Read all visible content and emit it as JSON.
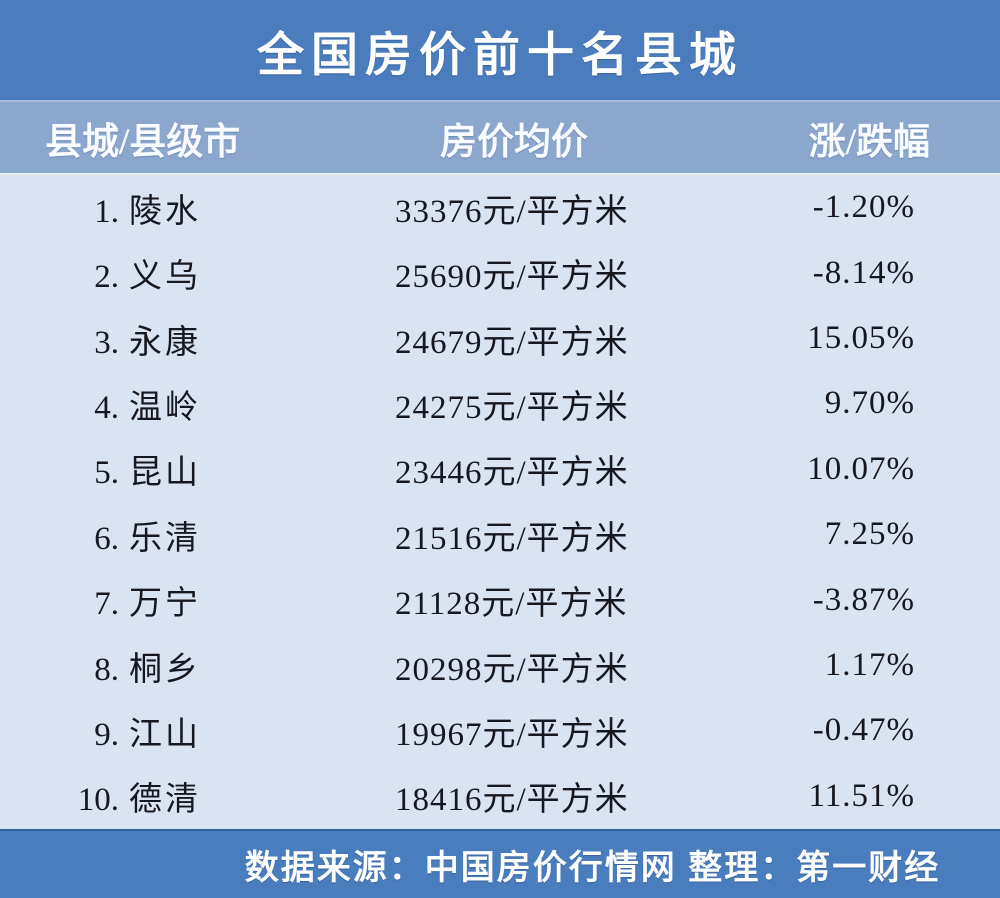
{
  "title": "全国房价前十名县城",
  "table": {
    "headers": [
      "县城/县级市",
      "房价均价",
      "涨/跌幅"
    ],
    "rows": [
      {
        "rank": "1.",
        "name": "陵水",
        "price": "33376元/平方米",
        "change": "-1.20%"
      },
      {
        "rank": "2.",
        "name": "义乌",
        "price": "25690元/平方米",
        "change": "-8.14%"
      },
      {
        "rank": "3.",
        "name": "永康",
        "price": "24679元/平方米",
        "change": "15.05%"
      },
      {
        "rank": "4.",
        "name": "温岭",
        "price": "24275元/平方米",
        "change": "9.70%"
      },
      {
        "rank": "5.",
        "name": "昆山",
        "price": "23446元/平方米",
        "change": "10.07%"
      },
      {
        "rank": "6.",
        "name": "乐清",
        "price": "21516元/平方米",
        "change": "7.25%"
      },
      {
        "rank": "7.",
        "name": "万宁",
        "price": "21128元/平方米",
        "change": "-3.87%"
      },
      {
        "rank": "8.",
        "name": "桐乡",
        "price": "20298元/平方米",
        "change": "1.17%"
      },
      {
        "rank": "9.",
        "name": "江山",
        "price": "19967元/平方米",
        "change": "-0.47%"
      },
      {
        "rank": "10.",
        "name": "德清",
        "price": "18416元/平方米",
        "change": "11.51%"
      }
    ]
  },
  "footer": "数据来源：中国房价行情网  整理：第一财经",
  "colors": {
    "title_bar": "#4a7cbe",
    "header_band": "#8ba7ce",
    "body_bg": "#d9e3f1",
    "footer_bar": "#4a7dbe",
    "row_text": "#17171f",
    "light_text": "#fdfeff"
  },
  "chart_data": {
    "type": "table",
    "title": "全国房价前十名县城",
    "columns": [
      "县城/县级市",
      "房价均价(元/平方米)",
      "涨/跌幅(%)"
    ],
    "rows": [
      [
        "陵水",
        33376,
        -1.2
      ],
      [
        "义乌",
        25690,
        -8.14
      ],
      [
        "永康",
        24679,
        15.05
      ],
      [
        "温岭",
        24275,
        9.7
      ],
      [
        "昆山",
        23446,
        10.07
      ],
      [
        "乐清",
        21516,
        7.25
      ],
      [
        "万宁",
        21128,
        -3.87
      ],
      [
        "桐乡",
        20298,
        1.17
      ],
      [
        "江山",
        19967,
        -0.47
      ],
      [
        "德清",
        18416,
        11.51
      ]
    ],
    "price_unit": "元/平方米",
    "change_unit": "%",
    "source_note": "数据来源：中国房价行情网  整理：第一财经"
  }
}
